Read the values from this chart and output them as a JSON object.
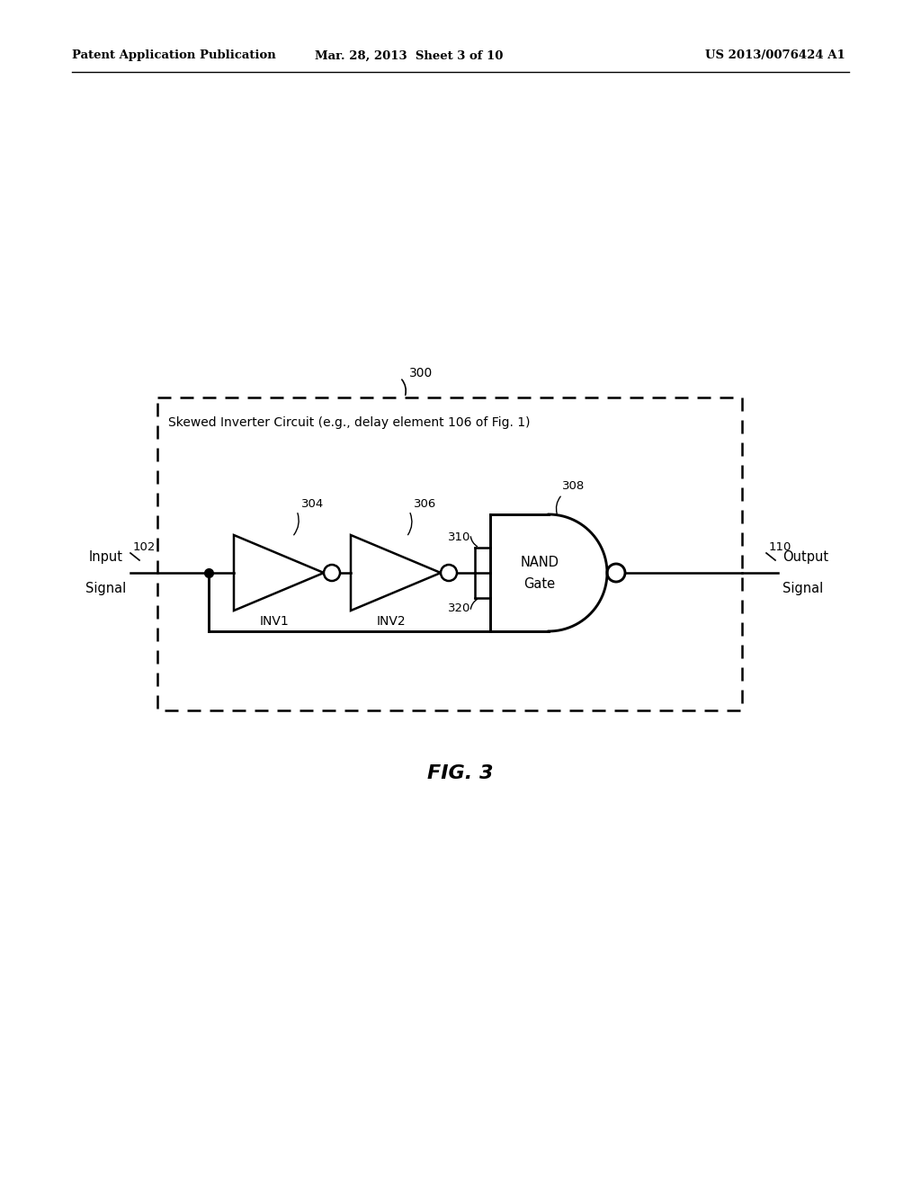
{
  "bg_color": "#ffffff",
  "header_left": "Patent Application Publication",
  "header_mid": "Mar. 28, 2013  Sheet 3 of 10",
  "header_right": "US 2013/0076424 A1",
  "fig_label": "FIG. 3",
  "box_label": "300",
  "box_title": "Skewed Inverter Circuit (e.g., delay element 106 of Fig. 1)",
  "label_102": "102",
  "label_input": "Input\nSignal",
  "label_110": "110",
  "label_output": "Output\nSignal",
  "label_inv1": "INV1",
  "label_304": "304",
  "label_inv2": "INV2",
  "label_306": "306",
  "label_310": "310",
  "label_320": "320",
  "label_308": "308",
  "label_nand": "NAND\nGate"
}
